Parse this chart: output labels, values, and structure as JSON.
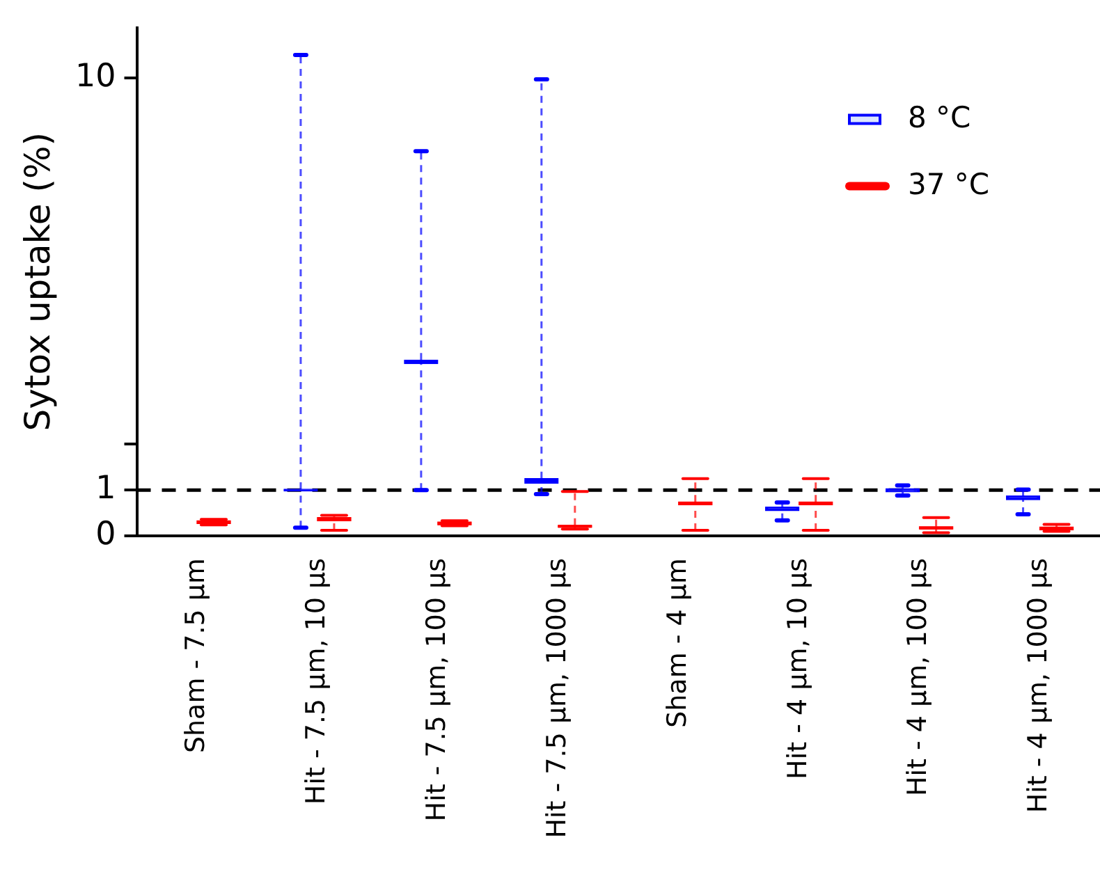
{
  "chart_data": {
    "type": "box",
    "ylabel": "Sytox uptake (%)",
    "categories": [
      "Sham - 7.5 µm",
      "Hit - 7.5 µm, 10 µs",
      "Hit - 7.5 µm, 100 µs",
      "Hit - 7.5 µm, 1000 µs",
      "Sham - 4 µm",
      "Hit - 4 µm, 10 µs",
      "Hit - 4 µm, 100 µs",
      "Hit - 4 µm, 1000 µs"
    ],
    "series": [
      {
        "name": "8 °C",
        "color": "#0000ff",
        "boxes": [
          null,
          {
            "low": 0.18,
            "q1": 0.98,
            "median": 1.0,
            "q3": 1.02,
            "high": 10.5
          },
          {
            "low": 1.0,
            "q1": 3.76,
            "median": 3.8,
            "q3": 3.84,
            "high": 8.4
          },
          {
            "low": 0.91,
            "q1": 1.15,
            "median": 1.2,
            "q3": 1.25,
            "high": 9.97
          },
          null,
          {
            "low": 0.34,
            "q1": 0.55,
            "median": 0.59,
            "q3": 0.63,
            "high": 0.73
          },
          {
            "low": 0.88,
            "q1": 0.96,
            "median": 1.0,
            "q3": 1.03,
            "high": 1.1
          },
          {
            "low": 0.47,
            "q1": 0.79,
            "median": 0.83,
            "q3": 0.87,
            "high": 1.01
          }
        ]
      },
      {
        "name": "37 °C",
        "color": "#ff0000",
        "boxes": [
          {
            "low": 0.24,
            "q1": 0.27,
            "median": 0.3,
            "q3": 0.33,
            "high": 0.36
          },
          {
            "low": 0.12,
            "q1": 0.33,
            "median": 0.37,
            "q3": 0.4,
            "high": 0.45
          },
          {
            "low": 0.22,
            "q1": 0.24,
            "median": 0.27,
            "q3": 0.3,
            "high": 0.33
          },
          {
            "low": 0.15,
            "q1": 0.19,
            "median": 0.21,
            "q3": 0.23,
            "high": 0.97
          },
          {
            "low": 0.12,
            "q1": 0.68,
            "median": 0.71,
            "q3": 0.74,
            "high": 1.25
          },
          {
            "low": 0.12,
            "q1": 0.68,
            "median": 0.71,
            "q3": 0.74,
            "high": 1.25
          },
          {
            "low": 0.07,
            "q1": 0.15,
            "median": 0.17,
            "q3": 0.2,
            "high": 0.4
          },
          {
            "low": 0.1,
            "q1": 0.13,
            "median": 0.16,
            "q3": 0.19,
            "high": 0.25
          }
        ]
      }
    ],
    "ylim": [
      0,
      11.1
    ],
    "yticks": [
      0,
      1,
      {
        "value": 2,
        "label": null
      },
      10
    ],
    "ref_lines": [
      {
        "axis": "y",
        "value": 1,
        "color": "#000000",
        "line_style": "dashed"
      }
    ],
    "grid": false,
    "legend": "top right"
  }
}
